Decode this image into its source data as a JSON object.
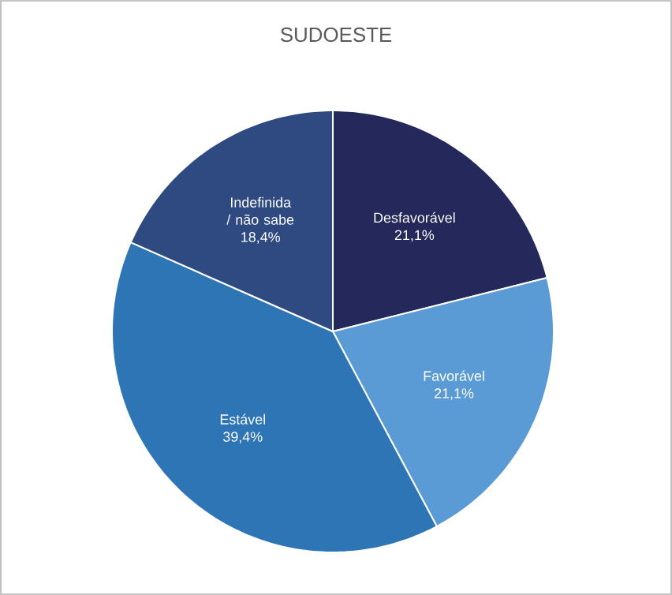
{
  "chart_data": {
    "type": "pie",
    "title": "SUDOESTE",
    "categories": [
      "Desfavorável",
      "Favorável",
      "Estável",
      "Indefinida / não sabe"
    ],
    "values": [
      21.1,
      21.1,
      39.4,
      18.4
    ],
    "value_labels": [
      "21,1%",
      "21,1%",
      "39,4%",
      "18,4%"
    ],
    "colors": [
      "#24285a",
      "#5b9bd5",
      "#2e75b6",
      "#2f4a80"
    ]
  }
}
